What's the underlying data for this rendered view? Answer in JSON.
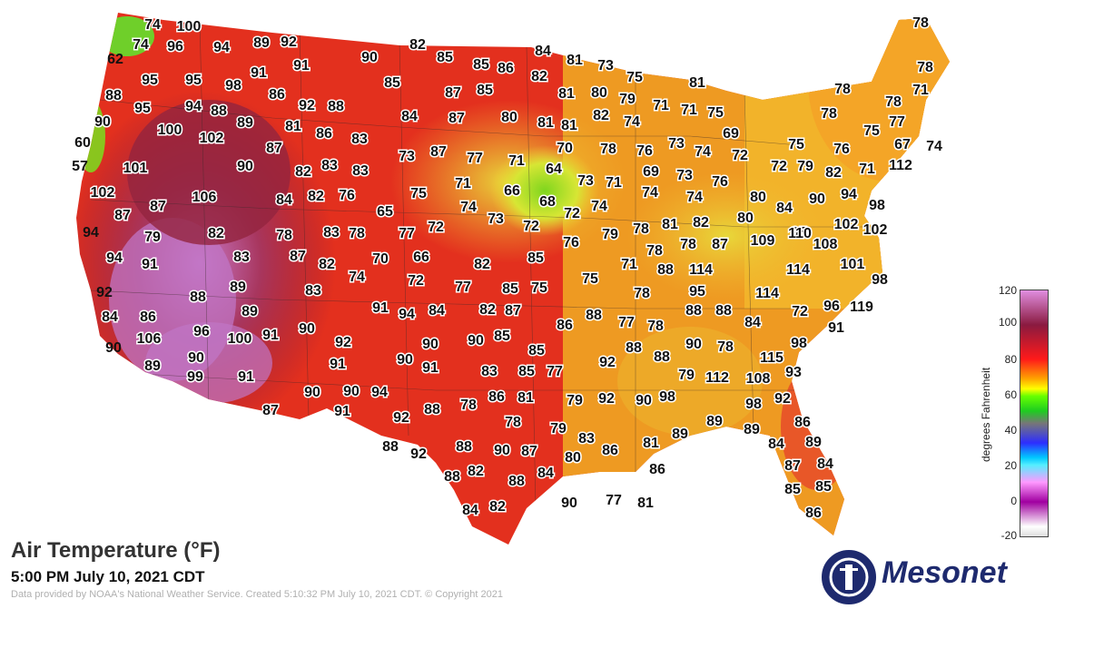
{
  "title": "Air Temperature (°F)",
  "subtitle": "5:00 PM July 10, 2021 CDT",
  "credit": "Data provided by NOAA's National Weather Service. Created 5:10:32 PM July 10, 2021 CDT. © Copyright 2021",
  "legend": {
    "title": "degrees Fahrenheit",
    "ticks": [
      "120",
      "100",
      "80",
      "60",
      "40",
      "20",
      "0",
      "-20"
    ]
  },
  "logo": {
    "text": "Mesonet"
  },
  "colors": {
    "scale_hot": "#8b1a3a",
    "scale_red": "#e42b1f",
    "scale_orange": "#f09a1f",
    "scale_yellow": "#f5d23a",
    "scale_green": "#7fd61e",
    "scale_extreme": "#c879c8",
    "logo_blue": "#1e2a6e"
  },
  "temperatures": [
    "74",
    "100",
    "74",
    "96",
    "94",
    "89",
    "92",
    "62",
    "95",
    "95",
    "98",
    "91",
    "91",
    "90",
    "82",
    "85",
    "85",
    "86",
    "84",
    "81",
    "73",
    "75",
    "78",
    "78",
    "88",
    "95",
    "94",
    "88",
    "86",
    "92",
    "88",
    "85",
    "87",
    "85",
    "82",
    "81",
    "80",
    "79",
    "71",
    "71",
    "75",
    "81",
    "78",
    "71",
    "90",
    "100",
    "102",
    "89",
    "81",
    "86",
    "83",
    "84",
    "87",
    "80",
    "81",
    "81",
    "82",
    "74",
    "69",
    "78",
    "78",
    "77",
    "60",
    "57",
    "101",
    "90",
    "87",
    "82",
    "83",
    "83",
    "73",
    "87",
    "77",
    "71",
    "64",
    "73",
    "71",
    "70",
    "78",
    "76",
    "73",
    "74",
    "72",
    "75",
    "72",
    "79",
    "82",
    "71",
    "76",
    "75",
    "67",
    "74",
    "112",
    "102",
    "106",
    "87",
    "84",
    "82",
    "76",
    "75",
    "71",
    "66",
    "68",
    "69",
    "74",
    "73",
    "74",
    "76",
    "80",
    "84",
    "90",
    "94",
    "98",
    "87",
    "82",
    "78",
    "83",
    "78",
    "65",
    "77",
    "72",
    "74",
    "73",
    "72",
    "72",
    "74",
    "78",
    "81",
    "82",
    "80",
    "95",
    "102",
    "102",
    "94",
    "79",
    "83",
    "87",
    "82",
    "70",
    "66",
    "76",
    "79",
    "78",
    "78",
    "87",
    "109",
    "110",
    "108",
    "94",
    "91",
    "89",
    "85",
    "74",
    "72",
    "82",
    "71",
    "88",
    "114",
    "114",
    "101",
    "92",
    "88",
    "83",
    "77",
    "85",
    "75",
    "75",
    "78",
    "95",
    "114",
    "98",
    "84",
    "86",
    "89",
    "91",
    "94",
    "84",
    "82",
    "87",
    "86",
    "88",
    "77",
    "78",
    "88",
    "88",
    "84",
    "72",
    "96",
    "119",
    "90",
    "106",
    "96",
    "100",
    "91",
    "90",
    "92",
    "90",
    "90",
    "85",
    "85",
    "88",
    "88",
    "90",
    "78",
    "115",
    "98",
    "91",
    "89",
    "90",
    "91",
    "90",
    "91",
    "83",
    "85",
    "77",
    "92",
    "79",
    "112",
    "108",
    "93",
    "99",
    "91",
    "90",
    "90",
    "94",
    "86",
    "81",
    "79",
    "92",
    "90",
    "98",
    "98",
    "92",
    "87",
    "91",
    "92",
    "88",
    "78",
    "78",
    "79",
    "89",
    "89",
    "89",
    "86",
    "88",
    "92",
    "88",
    "90",
    "87",
    "80",
    "83",
    "86",
    "81",
    "84",
    "89",
    "88",
    "82",
    "88",
    "84",
    "86",
    "87",
    "84",
    "84",
    "82",
    "90",
    "77",
    "81",
    "85",
    "85",
    "86"
  ]
}
